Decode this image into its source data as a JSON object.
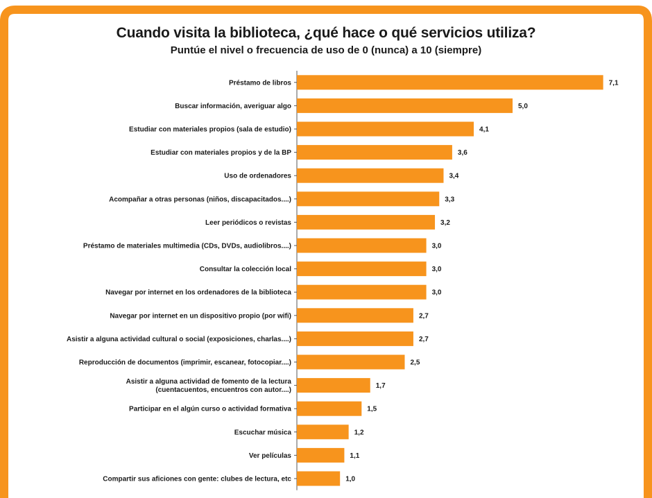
{
  "colors": {
    "accent": "#F7941D",
    "bar": "#F7941D",
    "background": "#ffffff",
    "text": "#1a1a1a"
  },
  "chart_data": {
    "type": "bar",
    "orientation": "horizontal",
    "title": "Cuando visita la biblioteca, ¿qué hace o qué servicios utiliza?",
    "subtitle": "Puntúe el nivel o frecuencia de uso de 0 (nunca) a 10 (siempre)",
    "xlim": [
      0,
      10
    ],
    "grid": false,
    "legend": "none",
    "categories": [
      [
        "Préstamo de libros"
      ],
      [
        "Buscar  información, averiguar algo"
      ],
      [
        "Estudiar con materiales propios (sala de estudio)"
      ],
      [
        "Estudiar con materiales propios y de la BP"
      ],
      [
        "Uso de ordenadores"
      ],
      [
        "Acompañar a otras personas (niños, discapacitados....)"
      ],
      [
        "Leer periódicos o revistas"
      ],
      [
        "Préstamo de materiales multimedia (CDs, DVDs, audiolibros....)"
      ],
      [
        "Consultar la colección local"
      ],
      [
        "Navegar por internet en los ordenadores de la biblioteca"
      ],
      [
        "Navegar por internet en un dispositivo propio (por wifi)"
      ],
      [
        "Asistir a alguna actividad cultural o social (exposiciones, charlas....)"
      ],
      [
        "Reproducción de documentos (imprimir, escanear, fotocopiar....)"
      ],
      [
        "Asistir a alguna actividad de fomento de la lectura",
        "(cuentacuentos, encuentros con autor....)"
      ],
      [
        "Participar en el algún curso o actividad formativa"
      ],
      [
        "Escuchar música"
      ],
      [
        "Ver películas"
      ],
      [
        "Compartir sus aficiones con gente: clubes de lectura, etc"
      ]
    ],
    "values": [
      7.1,
      5.0,
      4.1,
      3.6,
      3.4,
      3.3,
      3.2,
      3.0,
      3.0,
      3.0,
      2.7,
      2.7,
      2.5,
      1.7,
      1.5,
      1.2,
      1.1,
      1.0
    ],
    "value_labels": [
      "7,1",
      "5,0",
      "4,1",
      "3,6",
      "3,4",
      "3,3",
      "3,2",
      "3,0",
      "3,0",
      "3,0",
      "2,7",
      "2,7",
      "2,5",
      "1,7",
      "1,5",
      "1,2",
      "1,1",
      "1,0"
    ]
  }
}
